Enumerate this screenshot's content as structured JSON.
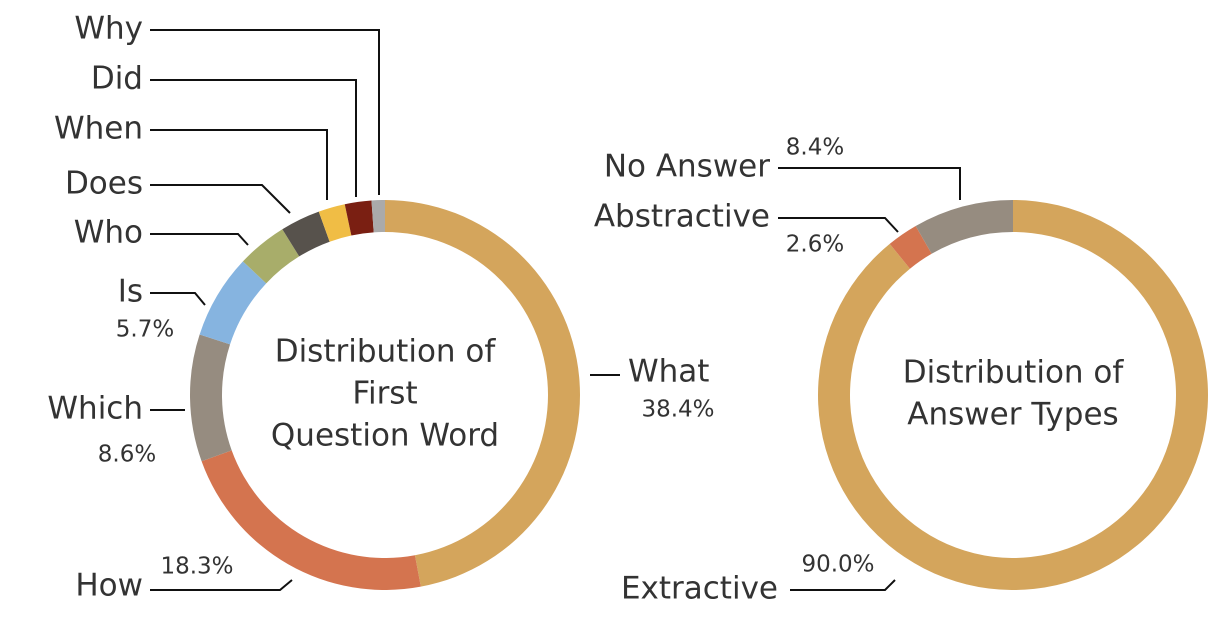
{
  "chart_data": [
    {
      "type": "donut",
      "title": [
        "Distribution of",
        "First",
        "Question Word"
      ],
      "categories": [
        "What",
        "How",
        "Which",
        "Is",
        "Who",
        "Does",
        "When",
        "Did",
        "Why"
      ],
      "values": [
        38.4,
        18.3,
        8.6,
        5.7,
        3.4,
        2.7,
        1.8,
        1.8,
        0.9
      ],
      "value_labels": [
        "38.4%",
        "18.3%",
        "8.6%",
        "5.7%",
        null,
        null,
        null,
        null,
        null
      ],
      "colors": [
        "#d4a55c",
        "#d4744f",
        "#968c80",
        "#86b4e0",
        "#a8ad6a",
        "#57524c",
        "#f0bd45",
        "#7a1f12",
        "#aaaaaa"
      ]
    },
    {
      "type": "donut",
      "title": [
        "Distribution of",
        "Answer Types"
      ],
      "categories": [
        "Extractive",
        "Abstractive",
        "No Answer"
      ],
      "values": [
        90.0,
        2.6,
        8.4
      ],
      "value_labels": [
        "90.0%",
        "2.6%",
        "8.4%"
      ],
      "colors": [
        "#d4a55c",
        "#d4744f",
        "#968c80"
      ]
    }
  ]
}
